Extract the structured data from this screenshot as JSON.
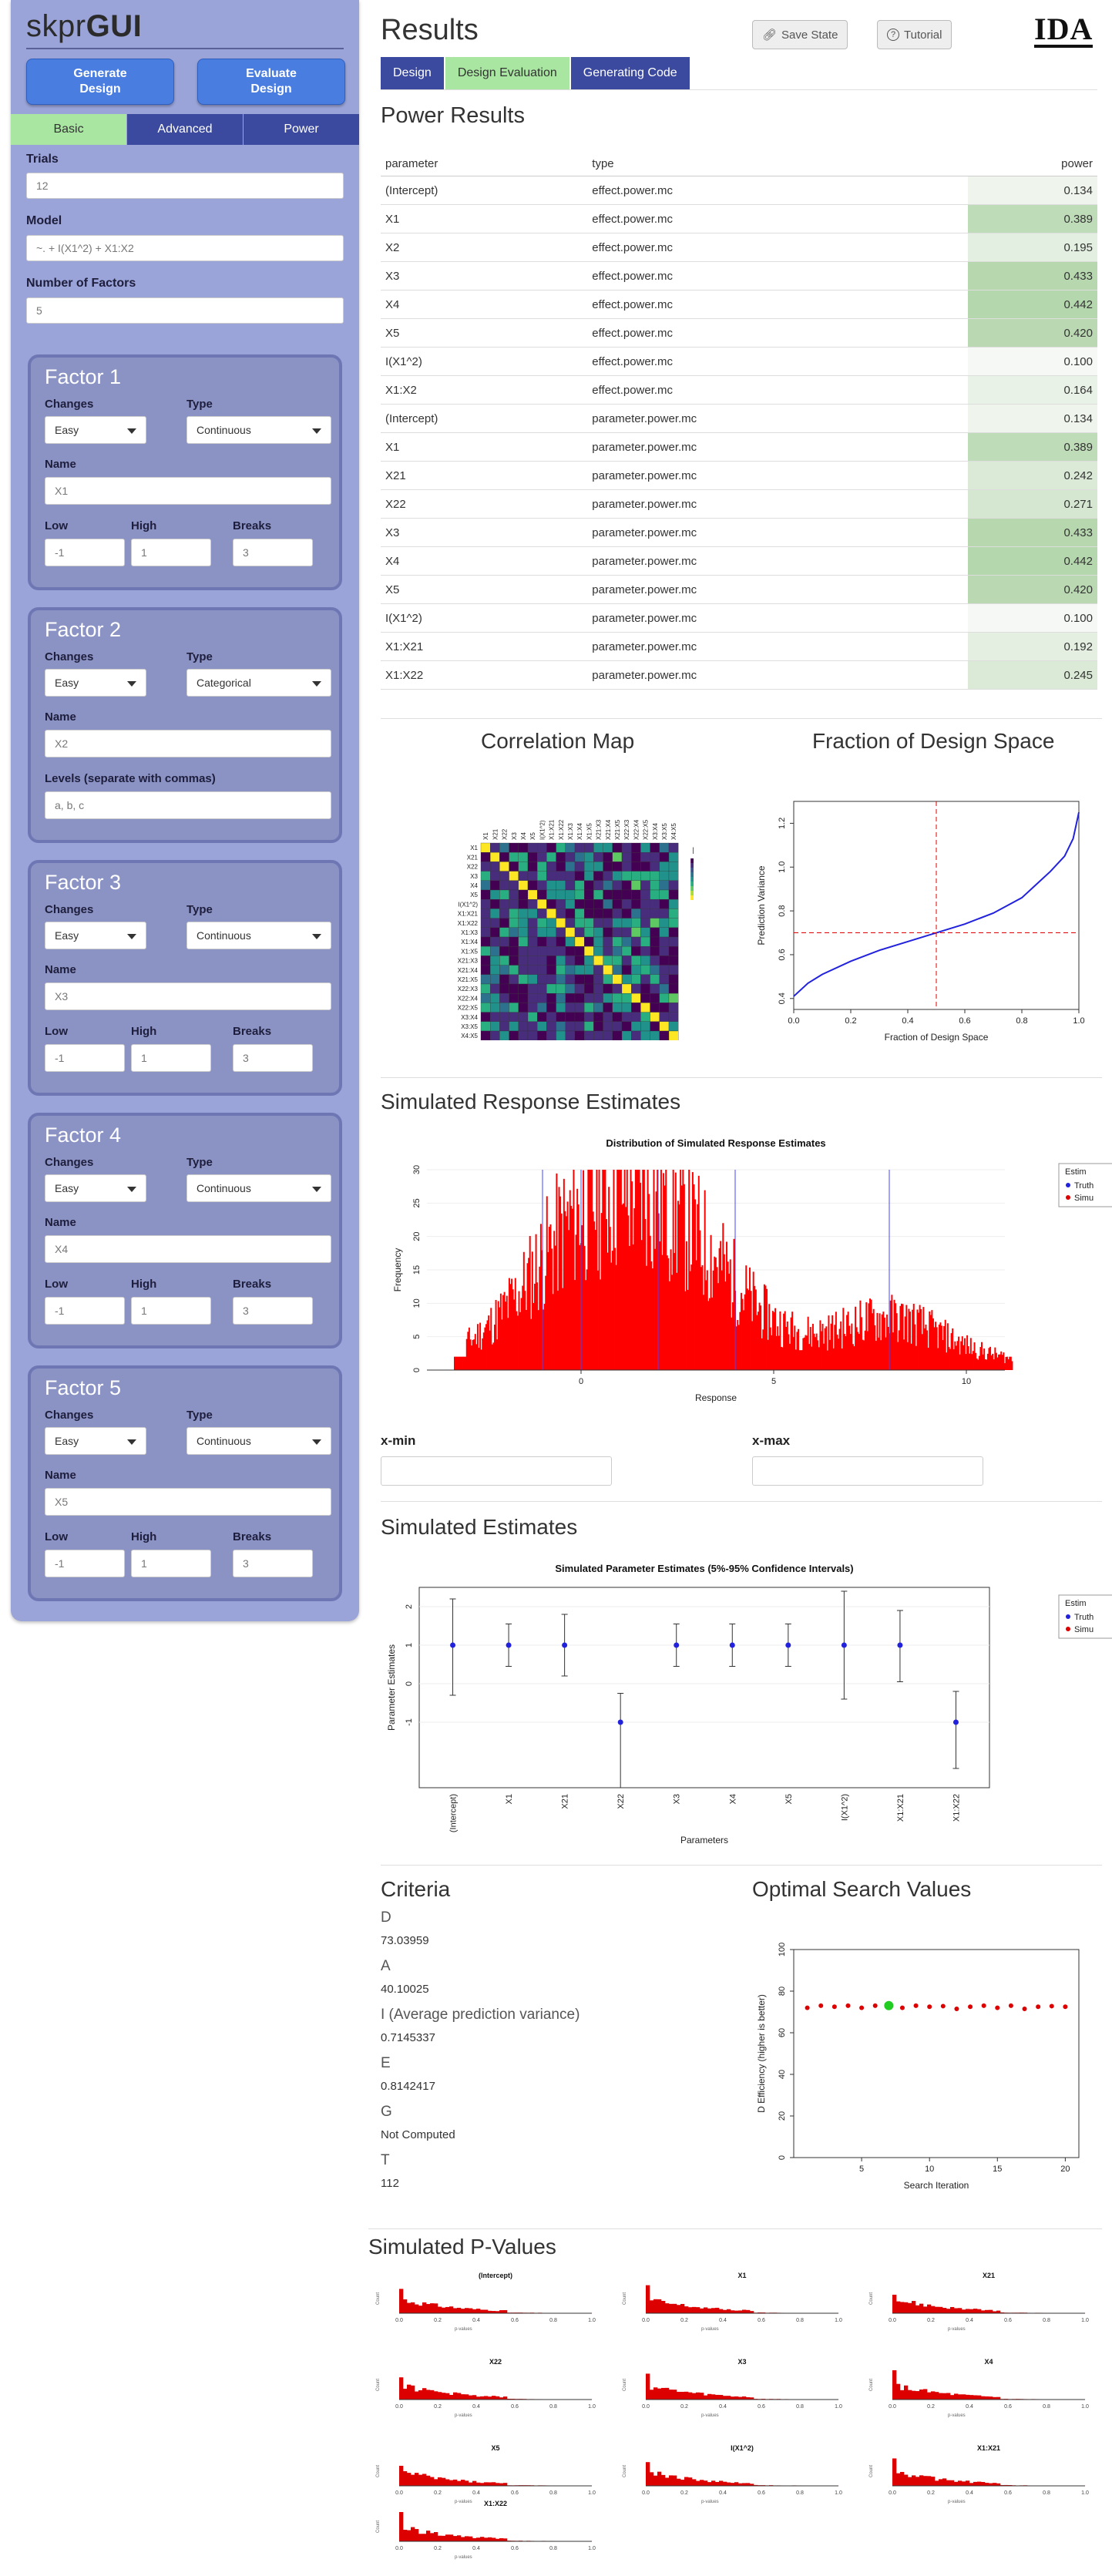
{
  "sidebar": {
    "brand_light": "skpr",
    "brand_bold": "GUI",
    "generate_label_1": "Generate",
    "generate_label_2": "Design",
    "evaluate_label_1": "Evaluate",
    "evaluate_label_2": "Design",
    "tabs": [
      "Basic",
      "Advanced",
      "Power"
    ],
    "trials_label": "Trials",
    "trials_value": "12",
    "model_label": "Model",
    "model_value": "~. + I(X1^2) + X1:X2",
    "num_factors_label": "Number of Factors",
    "num_factors_value": "5",
    "factors": [
      {
        "title": "Factor 1",
        "changes": "Easy",
        "type": "Continuous",
        "name": "X1",
        "low": "-1",
        "high": "1",
        "breaks": "3"
      },
      {
        "title": "Factor 2",
        "changes": "Easy",
        "type": "Categorical",
        "name": "X2",
        "levels_label": "Levels (separate with commas)",
        "levels_placeholder": "a, b, c"
      },
      {
        "title": "Factor 3",
        "changes": "Easy",
        "type": "Continuous",
        "name": "X3",
        "low": "-1",
        "high": "1",
        "breaks": "3"
      },
      {
        "title": "Factor 4",
        "changes": "Easy",
        "type": "Continuous",
        "name": "X4",
        "low": "-1",
        "high": "1",
        "breaks": "3"
      },
      {
        "title": "Factor 5",
        "changes": "Easy",
        "type": "Continuous",
        "name": "X5",
        "low": "-1",
        "high": "1",
        "breaks": "3"
      }
    ],
    "labels": {
      "changes": "Changes",
      "type": "Type",
      "name": "Name",
      "low": "Low",
      "high": "High",
      "breaks": "Breaks"
    }
  },
  "header": {
    "title": "Results",
    "save_state": "Save State",
    "tutorial": "Tutorial",
    "logo": "IDA",
    "tabs": [
      "Design",
      "Design Evaluation",
      "Generating Code"
    ]
  },
  "power": {
    "title": "Power Results",
    "columns": [
      "parameter",
      "type",
      "power"
    ],
    "rows": [
      [
        "(Intercept)",
        "effect.power.mc",
        "0.134"
      ],
      [
        "X1",
        "effect.power.mc",
        "0.389"
      ],
      [
        "X2",
        "effect.power.mc",
        "0.195"
      ],
      [
        "X3",
        "effect.power.mc",
        "0.433"
      ],
      [
        "X4",
        "effect.power.mc",
        "0.442"
      ],
      [
        "X5",
        "effect.power.mc",
        "0.420"
      ],
      [
        "I(X1^2)",
        "effect.power.mc",
        "0.100"
      ],
      [
        "X1:X2",
        "effect.power.mc",
        "0.164"
      ],
      [
        "(Intercept)",
        "parameter.power.mc",
        "0.134"
      ],
      [
        "X1",
        "parameter.power.mc",
        "0.389"
      ],
      [
        "X21",
        "parameter.power.mc",
        "0.242"
      ],
      [
        "X22",
        "parameter.power.mc",
        "0.271"
      ],
      [
        "X3",
        "parameter.power.mc",
        "0.433"
      ],
      [
        "X4",
        "parameter.power.mc",
        "0.442"
      ],
      [
        "X5",
        "parameter.power.mc",
        "0.420"
      ],
      [
        "I(X1^2)",
        "parameter.power.mc",
        "0.100"
      ],
      [
        "X1:X21",
        "parameter.power.mc",
        "0.192"
      ],
      [
        "X1:X22",
        "parameter.power.mc",
        "0.245"
      ]
    ]
  },
  "sections": {
    "correlation_map": "Correlation Map",
    "fds": "Fraction of Design Space",
    "sim_response": "Simulated Response Estimates",
    "sim_estimates": "Simulated Estimates",
    "criteria": "Criteria",
    "optimal_search": "Optimal Search Values",
    "sim_pvalues": "Simulated P-Values"
  },
  "xrange": {
    "xmin_label": "x-min",
    "xmax_label": "x-max"
  },
  "criteria": [
    {
      "label": "D",
      "value": "73.03959"
    },
    {
      "label": "A",
      "value": "40.10025"
    },
    {
      "label": "I (Average prediction variance)",
      "value": "0.7145337"
    },
    {
      "label": "E",
      "value": "0.8142417"
    },
    {
      "label": "G",
      "value": "Not Computed"
    },
    {
      "label": "T",
      "value": "112"
    }
  ],
  "colors": {
    "accent": "#3b4a9e",
    "active_tab": "#a8e6a1",
    "sidebar": "#9aa4d8",
    "power_high": "#c5e0c0"
  },
  "chart_data": [
    {
      "type": "heatmap",
      "title": "",
      "labels": [
        "X1",
        "X21",
        "X22",
        "X3",
        "X4",
        "X5",
        "I(X1^2)",
        "X1:X21",
        "X1:X22",
        "X1:X3",
        "X1:X4",
        "X1:X5",
        "X21:X3",
        "X21:X4",
        "X21:X5",
        "X22:X3",
        "X22:X4",
        "X22:X5",
        "X3:X4",
        "X3:X5",
        "X4:X5"
      ],
      "legend_title": "|r|",
      "legend_ticks": [
        "0",
        "0.5",
        "1.0"
      ]
    },
    {
      "type": "line",
      "xlabel": "Fraction of Design Space",
      "ylabel": "Prediction Variance",
      "xlim": [
        0,
        1
      ],
      "ylim": [
        0.35,
        1.3
      ],
      "xticks": [
        "0.0",
        "0.2",
        "0.4",
        "0.6",
        "0.8",
        "1.0"
      ],
      "yticks": [
        "0.4",
        "0.6",
        "0.8",
        "1.0",
        "1.2"
      ],
      "x": [
        0,
        0.05,
        0.1,
        0.2,
        0.3,
        0.4,
        0.5,
        0.6,
        0.7,
        0.8,
        0.85,
        0.9,
        0.95,
        0.98,
        1.0
      ],
      "y": [
        0.41,
        0.47,
        0.51,
        0.57,
        0.62,
        0.66,
        0.7,
        0.74,
        0.79,
        0.86,
        0.92,
        0.98,
        1.05,
        1.13,
        1.25
      ],
      "ref_x": 0.5,
      "ref_y": 0.7
    },
    {
      "type": "bar",
      "title": "Distribution of Simulated Response Estimates",
      "xlabel": "Response",
      "ylabel": "Frequency",
      "xlim": [
        -4,
        11
      ],
      "ylim": [
        0,
        30
      ],
      "xticks": [
        "0",
        "5",
        "10"
      ],
      "yticks": [
        "0",
        "5",
        "10",
        "15",
        "20",
        "25",
        "30"
      ],
      "legend_title": "Estim",
      "legend_entries": [
        "Truth",
        "Simu"
      ],
      "truth_lines": [
        -1,
        0,
        2,
        4,
        8
      ]
    },
    {
      "type": "scatter",
      "title": "Simulated Parameter Estimates (5%-95% Confidence Intervals)",
      "xlabel": "Parameters",
      "ylabel": "Parameter Estimates",
      "categories": [
        "(Intercept)",
        "X1",
        "X21",
        "X22",
        "X3",
        "X4",
        "X5",
        "I(X1^2)",
        "X1:X21",
        "X1:X22"
      ],
      "truth": [
        1,
        1,
        1,
        -1,
        1,
        1,
        1,
        1,
        1,
        -1
      ],
      "low": [
        -0.3,
        0.45,
        0.2,
        -2.7,
        0.45,
        0.45,
        0.45,
        -0.4,
        0.05,
        -2.2
      ],
      "high": [
        2.2,
        1.55,
        1.8,
        -0.25,
        1.55,
        1.55,
        1.55,
        2.4,
        1.9,
        -0.2
      ],
      "ylim": [
        -2.7,
        2.5
      ],
      "yticks": [
        "-1",
        "0",
        "1",
        "2"
      ],
      "legend_title": "Estim",
      "legend_entries": [
        "Truth",
        "Simu"
      ]
    },
    {
      "type": "scatter",
      "xlabel": "Search Iteration",
      "ylabel": "D Efficiency (higher is better)",
      "xlim": [
        0,
        21
      ],
      "ylim": [
        0,
        100
      ],
      "xticks": [
        "5",
        "10",
        "15",
        "20"
      ],
      "yticks": [
        "0",
        "20",
        "40",
        "60",
        "80",
        "100"
      ],
      "x": [
        1,
        2,
        3,
        4,
        5,
        6,
        7,
        8,
        9,
        10,
        11,
        12,
        13,
        14,
        15,
        16,
        17,
        18,
        19,
        20
      ],
      "y": [
        72,
        73,
        72.5,
        73,
        72,
        73,
        73.04,
        72,
        73,
        72.5,
        72.8,
        71.5,
        72.5,
        73,
        72,
        73,
        71.5,
        72.5,
        72.8,
        72.5
      ],
      "best_index": 6
    },
    {
      "type": "bar",
      "panels": [
        "(Intercept)",
        "X1",
        "X21",
        "X22",
        "X3",
        "X4",
        "X5",
        "I(X1^2)",
        "X1:X21",
        "X1:X22"
      ],
      "xticks": [
        "0.0",
        "0.2",
        "0.4",
        "0.6",
        "0.8",
        "1.0"
      ],
      "xlabel": "p-values",
      "ylabel": "Count"
    }
  ]
}
